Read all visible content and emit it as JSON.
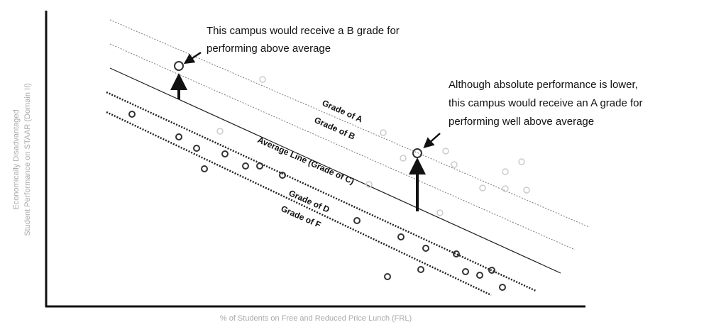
{
  "annotations": [
    {
      "lines": [
        "This campus would receive a B grade for",
        "performing above average"
      ]
    },
    {
      "lines": [
        "Although absolute performance is lower,",
        "this campus would receive an A grade for",
        "performing well above average"
      ]
    }
  ],
  "line_labels": [
    "Grade of A",
    "Grade of B",
    "Average Line (Grade of C)",
    "Grade of D",
    "Grade of F"
  ],
  "axes": {
    "x_label": "% of Students on Free and Reduced Price Lunch (FRL)",
    "y_label": [
      "Economically Disadvantaged",
      "Student Performance on STAAR (Domain II)"
    ]
  }
}
